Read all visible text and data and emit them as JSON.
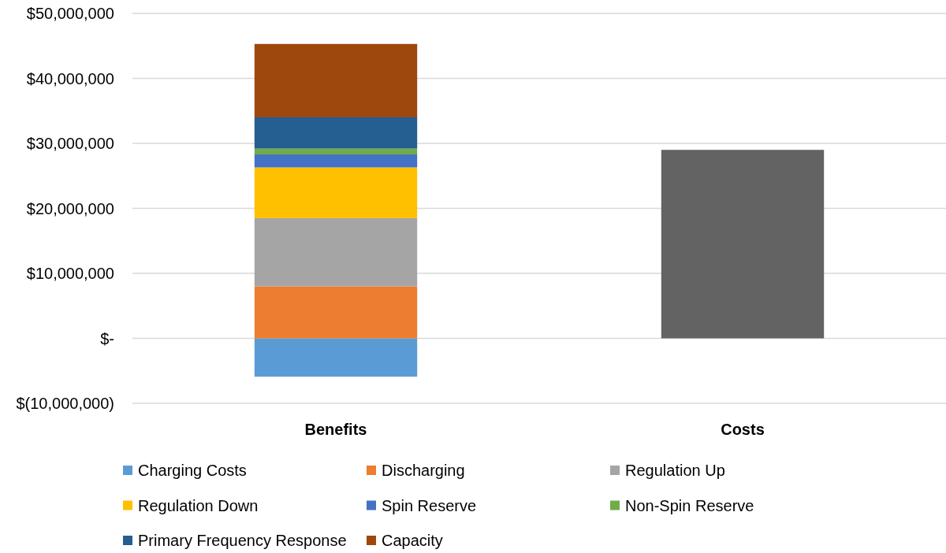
{
  "chart_data": {
    "type": "bar",
    "stacked": true,
    "categories": [
      "Benefits",
      "Costs"
    ],
    "series": [
      {
        "name": "Charging Costs",
        "color": "#5b9bd5",
        "values": [
          -5900000,
          null
        ]
      },
      {
        "name": "Discharging",
        "color": "#ed7d31",
        "values": [
          8000000,
          null
        ]
      },
      {
        "name": "Regulation Up",
        "color": "#a5a5a5",
        "values": [
          10500000,
          null
        ]
      },
      {
        "name": "Regulation Down",
        "color": "#ffc000",
        "values": [
          7800000,
          null
        ]
      },
      {
        "name": "Spin Reserve",
        "color": "#4472c4",
        "values": [
          2000000,
          null
        ]
      },
      {
        "name": "Non-Spin Reserve",
        "color": "#70ad47",
        "values": [
          900000,
          null
        ]
      },
      {
        "name": "Primary Frequency Response",
        "color": "#255e91",
        "values": [
          4800000,
          null
        ]
      },
      {
        "name": "Capacity",
        "color": "#9e480e",
        "values": [
          11300000,
          null
        ]
      },
      {
        "color": "#636363",
        "values": [
          null,
          29000000
        ]
      }
    ],
    "ylim": [
      -10000000,
      50000000
    ],
    "yticks": [
      {
        "value": -10000000,
        "label": "$(10,000,000)"
      },
      {
        "value": 0,
        "label": "$-"
      },
      {
        "value": 10000000,
        "label": "$10,000,000"
      },
      {
        "value": 20000000,
        "label": "$20,000,000"
      },
      {
        "value": 30000000,
        "label": "$30,000,000"
      },
      {
        "value": 40000000,
        "label": "$40,000,000"
      },
      {
        "value": 50000000,
        "label": "$50,000,000"
      }
    ],
    "grid": "y",
    "legend": "bottom"
  }
}
